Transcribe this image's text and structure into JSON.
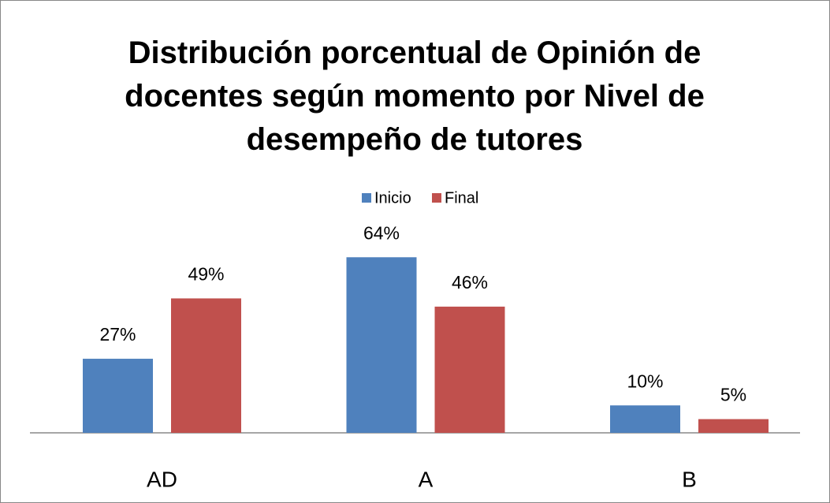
{
  "chart_data": {
    "type": "bar",
    "title": "Distribución porcentual de Opinión de docentes según momento por Nivel de desempeño de tutores",
    "categories": [
      "AD",
      "A",
      "B"
    ],
    "series": [
      {
        "name": "Inicio",
        "color": "#4f81bd",
        "values": [
          27,
          64,
          10
        ],
        "value_labels": [
          "27%",
          "64%",
          "10%"
        ]
      },
      {
        "name": "Final",
        "color": "#c0504d",
        "values": [
          49,
          46,
          5
        ],
        "value_labels": [
          "49%",
          "46%",
          "5%"
        ]
      }
    ],
    "legend": "top"
  }
}
